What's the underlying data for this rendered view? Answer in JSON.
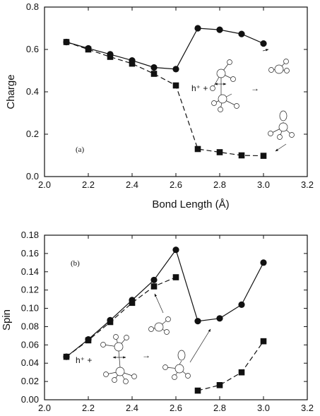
{
  "chart_data": [
    {
      "type": "line",
      "panel_label": "(a)",
      "xlabel": "Bond Length  (Å)",
      "ylabel": "Charge",
      "xlim": [
        2.0,
        3.2
      ],
      "ylim": [
        0.0,
        0.8
      ],
      "xticks": [
        "2.0",
        "2.2",
        "2.4",
        "2.6",
        "2.8",
        "3.0",
        "3.2"
      ],
      "yticks": [
        "0.0",
        "0.2",
        "0.4",
        "0.6",
        "0.8"
      ],
      "grid": false,
      "legend": "none",
      "series": [
        {
          "marker": "circle",
          "line": "solid",
          "segments": [
            [
              [
                2.1,
                0.635
              ],
              [
                2.2,
                0.605
              ],
              [
                2.3,
                0.577
              ],
              [
                2.4,
                0.548
              ],
              [
                2.5,
                0.515
              ],
              [
                2.6,
                0.507
              ],
              [
                2.7,
                0.7
              ],
              [
                2.8,
                0.693
              ],
              [
                2.9,
                0.673
              ],
              [
                3.0,
                0.628
              ]
            ]
          ]
        },
        {
          "marker": "square",
          "line": "dashed",
          "segments": [
            [
              [
                2.1,
                0.635
              ],
              [
                2.2,
                0.6
              ],
              [
                2.3,
                0.565
              ],
              [
                2.4,
                0.533
              ],
              [
                2.5,
                0.485
              ],
              [
                2.6,
                0.43
              ],
              [
                2.7,
                0.13
              ],
              [
                2.8,
                0.115
              ],
              [
                2.9,
                0.1
              ],
              [
                3.0,
                0.098
              ]
            ]
          ]
        }
      ],
      "inset_text": [
        "h⁺ +",
        "→"
      ]
    },
    {
      "type": "line",
      "panel_label": "(b)",
      "xlabel": "",
      "ylabel": "Spin",
      "xlim": [
        2.0,
        3.2
      ],
      "ylim": [
        0.0,
        0.18
      ],
      "xticks": [
        "2.0",
        "2.2",
        "2.4",
        "2.6",
        "2.8",
        "3.0",
        "3.2"
      ],
      "yticks": [
        "0.00",
        "0.02",
        "0.04",
        "0.06",
        "0.08",
        "0.10",
        "0.12",
        "0.14",
        "0.16",
        "0.18"
      ],
      "grid": false,
      "legend": "none",
      "series": [
        {
          "marker": "circle",
          "line": "solid",
          "segments": [
            [
              [
                2.1,
                0.047
              ],
              [
                2.2,
                0.066
              ],
              [
                2.3,
                0.087
              ],
              [
                2.4,
                0.109
              ],
              [
                2.5,
                0.131
              ],
              [
                2.6,
                0.164
              ],
              [
                2.7,
                0.086
              ],
              [
                2.8,
                0.089
              ],
              [
                2.9,
                0.104
              ],
              [
                3.0,
                0.15
              ]
            ]
          ]
        },
        {
          "marker": "square",
          "line": "dashed",
          "segments": [
            [
              [
                2.1,
                0.047
              ],
              [
                2.2,
                0.065
              ],
              [
                2.3,
                0.085
              ],
              [
                2.4,
                0.106
              ],
              [
                2.5,
                0.124
              ],
              [
                2.6,
                0.134
              ]
            ],
            [
              [
                2.7,
                0.01
              ],
              [
                2.8,
                0.016
              ],
              [
                2.9,
                0.03
              ],
              [
                3.0,
                0.064
              ]
            ]
          ]
        }
      ],
      "inset_text": [
        "h⁺ +",
        "→"
      ]
    }
  ]
}
